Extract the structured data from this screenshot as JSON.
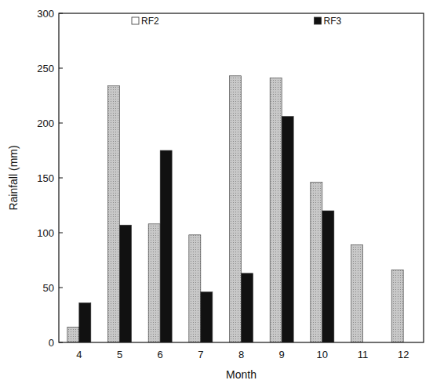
{
  "chart_data": {
    "type": "bar",
    "x_label": "Month",
    "y_label": "Rainfall (mm)",
    "categories": [
      "4",
      "5",
      "6",
      "7",
      "8",
      "9",
      "10",
      "11",
      "12"
    ],
    "series": [
      {
        "name": "RF2",
        "color": "#c8c8c8",
        "values": [
          14,
          234,
          108,
          98,
          243,
          241,
          146,
          89,
          66
        ]
      },
      {
        "name": "RF3",
        "color": "#111111",
        "values": [
          36,
          107,
          175,
          46,
          63,
          206,
          120,
          null,
          null
        ]
      }
    ],
    "ylim": [
      0,
      300
    ],
    "yticks": [
      0,
      50,
      100,
      150,
      200,
      250,
      300
    ],
    "grid": false,
    "legend": "top"
  }
}
